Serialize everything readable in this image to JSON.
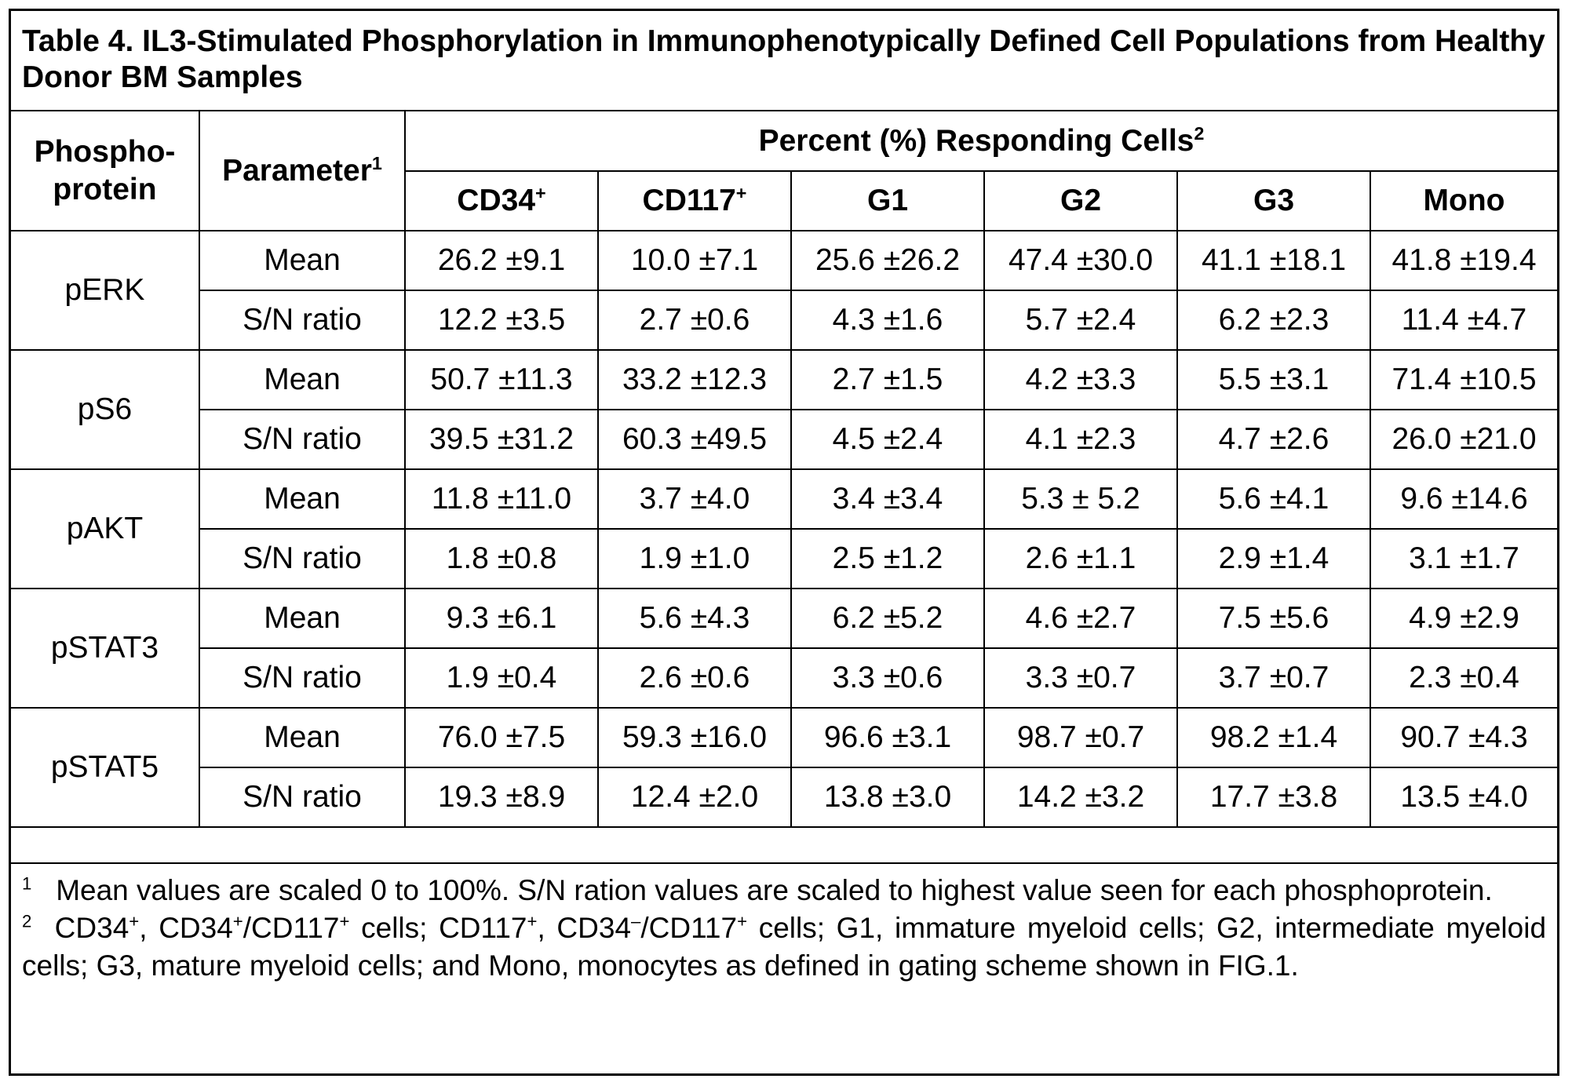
{
  "title": "Table 4.  IL3-Stimulated Phosphorylation in Immunophenotypically Defined Cell Populations from Healthy Donor BM Samples",
  "header": {
    "phosphoprotein": "Phospho-protein",
    "parameter": "Parameter",
    "parameter_sup": "1",
    "group": "Percent (%) Responding Cells",
    "group_sup": "2",
    "columns": [
      {
        "label": "CD34",
        "sup": "+"
      },
      {
        "label": "CD117",
        "sup": "+"
      },
      {
        "label": "G1",
        "sup": ""
      },
      {
        "label": "G2",
        "sup": ""
      },
      {
        "label": "G3",
        "sup": ""
      },
      {
        "label": "Mono",
        "sup": ""
      }
    ]
  },
  "rows": [
    {
      "protein": "pERK",
      "mean": {
        "label": "Mean",
        "values": [
          "26.2 ±9.1",
          "10.0 ±7.1",
          "25.6 ±26.2",
          "47.4 ±30.0",
          "41.1 ±18.1",
          "41.8 ±19.4"
        ]
      },
      "sn": {
        "label": "S/N ratio",
        "values": [
          "12.2 ±3.5",
          "2.7 ±0.6",
          "4.3 ±1.6",
          "5.7 ±2.4",
          "6.2 ±2.3",
          "11.4 ±4.7"
        ]
      }
    },
    {
      "protein": "pS6",
      "mean": {
        "label": "Mean",
        "values": [
          "50.7 ±11.3",
          "33.2 ±12.3",
          "2.7 ±1.5",
          "4.2 ±3.3",
          "5.5 ±3.1",
          "71.4 ±10.5"
        ]
      },
      "sn": {
        "label": "S/N ratio",
        "values": [
          "39.5 ±31.2",
          "60.3 ±49.5",
          "4.5 ±2.4",
          "4.1 ±2.3",
          "4.7 ±2.6",
          "26.0 ±21.0"
        ]
      }
    },
    {
      "protein": "pAKT",
      "mean": {
        "label": "Mean",
        "values": [
          "11.8 ±11.0",
          "3.7 ±4.0",
          "3.4 ±3.4",
          "5.3 ± 5.2",
          "5.6 ±4.1",
          "9.6 ±14.6"
        ]
      },
      "sn": {
        "label": "S/N ratio",
        "values": [
          "1.8 ±0.8",
          "1.9 ±1.0",
          "2.5 ±1.2",
          "2.6 ±1.1",
          "2.9 ±1.4",
          "3.1 ±1.7"
        ]
      }
    },
    {
      "protein": "pSTAT3",
      "mean": {
        "label": "Mean",
        "values": [
          "9.3 ±6.1",
          "5.6 ±4.3",
          "6.2 ±5.2",
          "4.6 ±2.7",
          "7.5 ±5.6",
          "4.9 ±2.9"
        ]
      },
      "sn": {
        "label": "S/N ratio",
        "values": [
          "1.9 ±0.4",
          "2.6 ±0.6",
          "3.3 ±0.6",
          "3.3 ±0.7",
          "3.7 ±0.7",
          "2.3 ±0.4"
        ]
      }
    },
    {
      "protein": "pSTAT5",
      "mean": {
        "label": "Mean",
        "values": [
          "76.0 ±7.5",
          "59.3 ±16.0",
          "96.6 ±3.1",
          "98.7 ±0.7",
          "98.2 ±1.4",
          "90.7 ±4.3"
        ]
      },
      "sn": {
        "label": "S/N ratio",
        "values": [
          "19.3 ±8.9",
          "12.4 ±2.0",
          "13.8 ±3.0",
          "14.2 ±3.2",
          "17.7 ±3.8",
          "13.5 ±4.0"
        ]
      }
    }
  ],
  "footnotes": {
    "fn1_mark": "1",
    "fn1_text": "Mean values are scaled 0 to 100%.  S/N ration values are scaled to highest value seen for each phosphoprotein.",
    "fn2_mark": "2",
    "fn2_parts": {
      "a": "CD34",
      "a_sup": "+",
      "b": ", CD34",
      "b_sup": "+",
      "c": "/CD117",
      "c_sup": "+",
      "d": " cells; CD117",
      "d_sup": "+",
      "e": ", CD34",
      "e_sup": "–",
      "f": "/CD117",
      "f_sup": "+",
      "g": " cells; G1, immature myeloid cells; G2, intermediate myeloid cells; G3, mature myeloid cells; and Mono, monocytes as defined in gating scheme shown in FIG.1."
    }
  }
}
